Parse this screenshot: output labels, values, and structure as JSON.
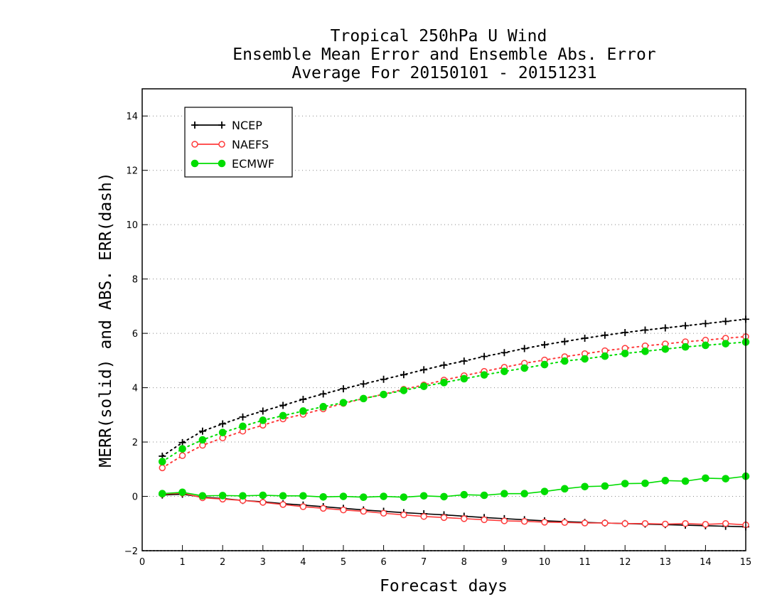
{
  "chart_data": {
    "type": "line",
    "title": [
      "Tropical 250hPa U Wind",
      "Ensemble Mean Error and Ensemble Abs. Error",
      "Average For 20150101 - 20151231"
    ],
    "xlabel": "Forecast days",
    "ylabel": "MERR(solid) and ABS. ERR(dash)",
    "xlim": [
      0,
      15
    ],
    "ylim": [
      -2,
      15
    ],
    "xticks": [
      0,
      1,
      2,
      3,
      4,
      5,
      6,
      7,
      8,
      9,
      10,
      11,
      12,
      13,
      14,
      15
    ],
    "yticks": [
      -2,
      0,
      2,
      4,
      6,
      8,
      10,
      12,
      14
    ],
    "grid": "horizontal dotted",
    "legend_position": "top-left",
    "x": [
      0.5,
      1,
      1.5,
      2,
      2.5,
      3,
      3.5,
      4,
      4.5,
      5,
      5.5,
      6,
      6.5,
      7,
      7.5,
      8,
      8.5,
      9,
      9.5,
      10,
      10.5,
      11,
      11.5,
      12,
      12.5,
      13,
      13.5,
      14,
      14.5,
      15
    ],
    "series": [
      {
        "name": "NCEP",
        "color": "#000000",
        "marker": "plus",
        "merr": [
          0.05,
          0.08,
          -0.03,
          -0.08,
          -0.15,
          -0.2,
          -0.27,
          -0.32,
          -0.38,
          -0.44,
          -0.5,
          -0.55,
          -0.6,
          -0.64,
          -0.68,
          -0.73,
          -0.78,
          -0.82,
          -0.86,
          -0.9,
          -0.93,
          -0.96,
          -0.98,
          -1.0,
          -1.02,
          -1.04,
          -1.06,
          -1.08,
          -1.1,
          -1.12
        ],
        "abs_err": [
          1.48,
          1.98,
          2.4,
          2.67,
          2.92,
          3.14,
          3.35,
          3.57,
          3.77,
          3.96,
          4.14,
          4.31,
          4.48,
          4.66,
          4.83,
          4.98,
          5.15,
          5.29,
          5.44,
          5.58,
          5.7,
          5.82,
          5.93,
          6.03,
          6.12,
          6.2,
          6.28,
          6.36,
          6.44,
          6.52
        ]
      },
      {
        "name": "NAEFS",
        "color": "#ff3b3b",
        "marker": "open-circle",
        "merr": [
          0.08,
          0.12,
          -0.05,
          -0.1,
          -0.15,
          -0.22,
          -0.3,
          -0.38,
          -0.44,
          -0.5,
          -0.55,
          -0.62,
          -0.68,
          -0.74,
          -0.78,
          -0.82,
          -0.86,
          -0.9,
          -0.92,
          -0.95,
          -0.96,
          -0.98,
          -0.98,
          -1.0,
          -1.0,
          -1.02,
          -1.0,
          -1.03,
          -1.0,
          -1.05
        ],
        "abs_err": [
          1.05,
          1.5,
          1.88,
          2.15,
          2.4,
          2.62,
          2.85,
          3.02,
          3.22,
          3.42,
          3.6,
          3.76,
          3.94,
          4.1,
          4.28,
          4.44,
          4.6,
          4.75,
          4.9,
          5.02,
          5.14,
          5.25,
          5.36,
          5.45,
          5.54,
          5.61,
          5.69,
          5.75,
          5.82,
          5.88
        ]
      },
      {
        "name": "ECMWF",
        "color": "#00dd00",
        "marker": "filled-circle",
        "merr": [
          0.1,
          0.15,
          0.02,
          0.03,
          0.02,
          0.04,
          0.02,
          0.02,
          -0.02,
          0.0,
          -0.03,
          0.0,
          -0.03,
          0.02,
          -0.01,
          0.06,
          0.04,
          0.1,
          0.1,
          0.18,
          0.28,
          0.36,
          0.38,
          0.47,
          0.48,
          0.58,
          0.56,
          0.67,
          0.65,
          0.74
        ],
        "abs_err": [
          1.28,
          1.75,
          2.08,
          2.35,
          2.58,
          2.8,
          2.97,
          3.14,
          3.3,
          3.45,
          3.6,
          3.75,
          3.9,
          4.05,
          4.19,
          4.33,
          4.47,
          4.6,
          4.72,
          4.85,
          4.98,
          5.06,
          5.16,
          5.26,
          5.34,
          5.42,
          5.5,
          5.56,
          5.62,
          5.68
        ]
      }
    ]
  }
}
